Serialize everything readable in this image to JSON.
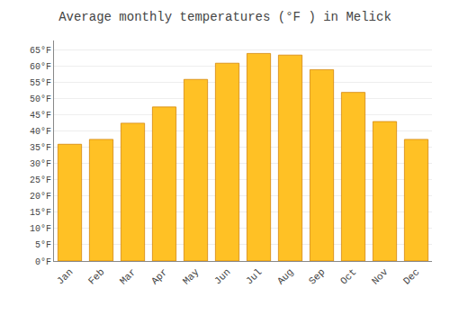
{
  "chart_data": {
    "type": "bar",
    "title": "Average monthly temperatures (°F ) in Melick",
    "categories": [
      "Jan",
      "Feb",
      "Mar",
      "Apr",
      "May",
      "Jun",
      "Jul",
      "Aug",
      "Sep",
      "Oct",
      "Nov",
      "Dec"
    ],
    "values": [
      36,
      37.5,
      42.5,
      47.5,
      56,
      61,
      64,
      63.5,
      59,
      52,
      43,
      37.5
    ],
    "color": "#FFC125",
    "ylim": [
      0,
      68
    ],
    "yticks": [
      {
        "value": 0,
        "label": "0°F"
      },
      {
        "value": 5,
        "label": "5°F"
      },
      {
        "value": 10,
        "label": "10°F"
      },
      {
        "value": 15,
        "label": "15°F"
      },
      {
        "value": 20,
        "label": "20°F"
      },
      {
        "value": 25,
        "label": "25°F"
      },
      {
        "value": 30,
        "label": "30°F"
      },
      {
        "value": 35,
        "label": "35°F"
      },
      {
        "value": 40,
        "label": "40°F"
      },
      {
        "value": 45,
        "label": "45°F"
      },
      {
        "value": 50,
        "label": "50°F"
      },
      {
        "value": 55,
        "label": "55°F"
      },
      {
        "value": 60,
        "label": "60°F"
      },
      {
        "value": 65,
        "label": "65°F"
      }
    ],
    "grid": true
  }
}
